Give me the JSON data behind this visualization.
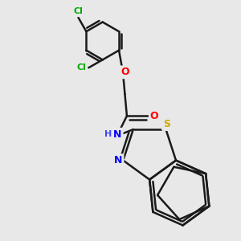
{
  "background_color": "#e8e8e8",
  "bond_color": "#1a1a1a",
  "bond_lw": 1.8,
  "atom_colors": {
    "Cl": "#00aa00",
    "O": "#ff0000",
    "N": "#0000ff",
    "S": "#ccaa00",
    "H": "#4444ff"
  },
  "fig_size": [
    3.0,
    3.0
  ],
  "dpi": 100,
  "xlim": [
    -1.5,
    3.5
  ],
  "ylim": [
    -3.8,
    2.2
  ]
}
